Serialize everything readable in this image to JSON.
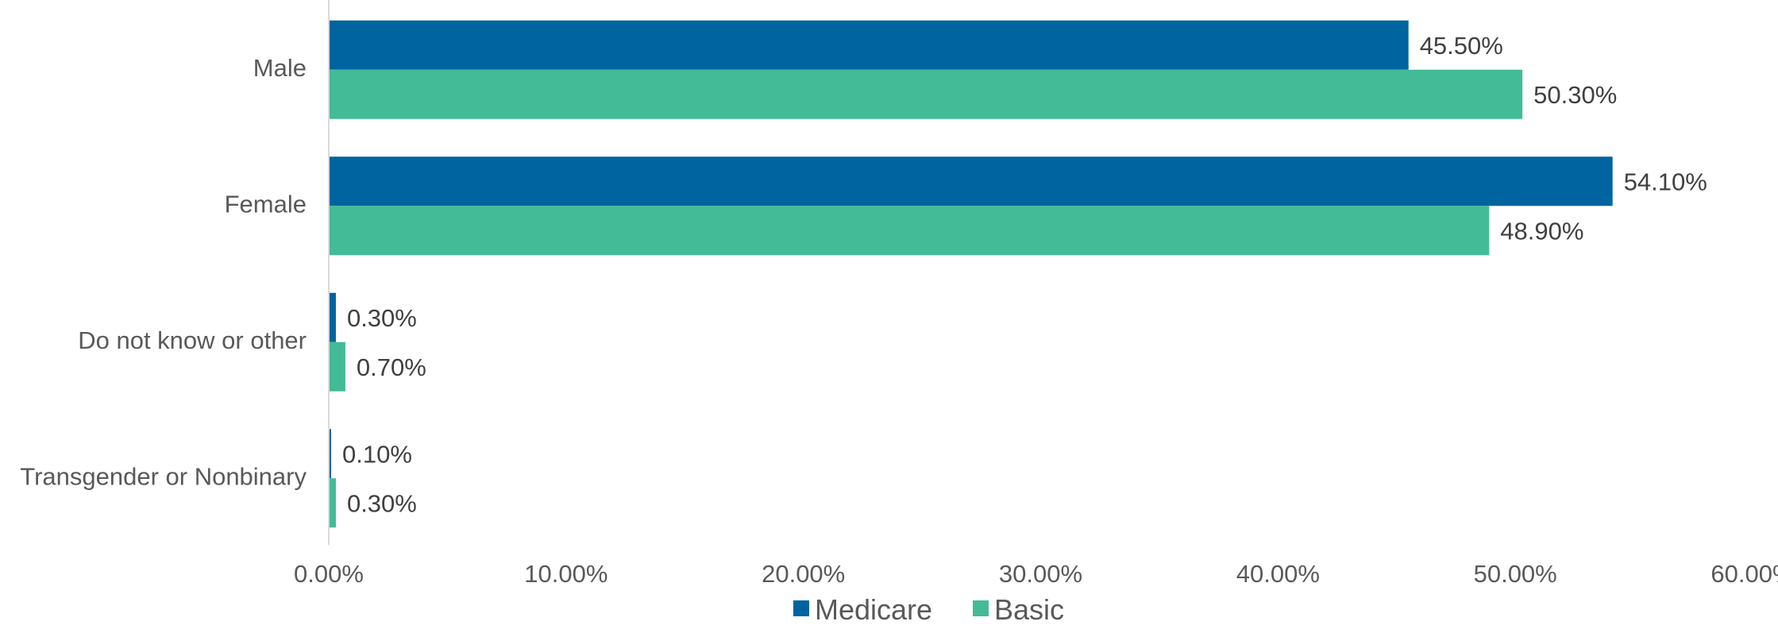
{
  "chart_data": {
    "type": "bar",
    "orientation": "horizontal",
    "categories": [
      "Male",
      "Female",
      "Do not know or other",
      "Transgender or Nonbinary"
    ],
    "series": [
      {
        "name": "Medicare",
        "color": "#0064a0",
        "values": [
          45.5,
          54.1,
          0.3,
          0.1
        ],
        "labels": [
          "45.50%",
          "54.10%",
          "0.30%",
          "0.10%"
        ]
      },
      {
        "name": "Basic",
        "color": "#43bb97",
        "values": [
          50.3,
          48.9,
          0.7,
          0.3
        ],
        "labels": [
          "50.30%",
          "48.90%",
          "0.70%",
          "0.30%"
        ]
      }
    ],
    "xlim": [
      0,
      60
    ],
    "x_ticks": [
      0,
      10,
      20,
      30,
      40,
      50,
      60
    ],
    "x_tick_labels": [
      "0.00%",
      "10.00%",
      "20.00%",
      "30.00%",
      "40.00%",
      "50.00%",
      "60.00%"
    ],
    "grid": false,
    "legend_position": "bottom",
    "axis_color": "#d9d9d9"
  }
}
